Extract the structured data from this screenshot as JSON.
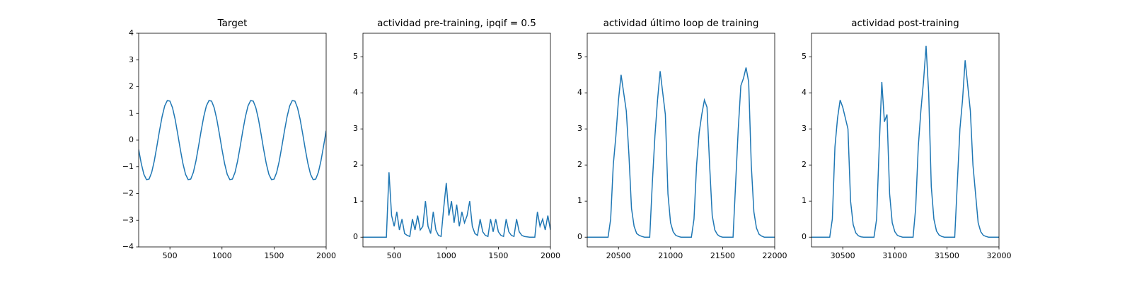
{
  "chart_data": [
    {
      "type": "line",
      "title": "Target",
      "color": "#1f77b4",
      "x": [
        200,
        225,
        250,
        275,
        300,
        325,
        350,
        375,
        400,
        425,
        450,
        475,
        500,
        525,
        550,
        575,
        600,
        625,
        650,
        675,
        700,
        725,
        750,
        775,
        800,
        825,
        850,
        875,
        900,
        925,
        950,
        975,
        1000,
        1025,
        1050,
        1075,
        1100,
        1125,
        1150,
        1175,
        1200,
        1225,
        1250,
        1275,
        1300,
        1325,
        1350,
        1375,
        1400,
        1425,
        1450,
        1475,
        1500,
        1525,
        1550,
        1575,
        1600,
        1625,
        1650,
        1675,
        1700,
        1725,
        1750,
        1775,
        1800,
        1825,
        1850,
        1875,
        1900,
        1925,
        1950,
        1975,
        2000
      ],
      "values": [
        -0.35,
        -0.88,
        -1.28,
        -1.48,
        -1.46,
        -1.21,
        -0.78,
        -0.23,
        0.35,
        0.88,
        1.28,
        1.48,
        1.46,
        1.21,
        0.78,
        0.23,
        -0.35,
        -0.88,
        -1.28,
        -1.48,
        -1.46,
        -1.21,
        -0.78,
        -0.23,
        0.35,
        0.88,
        1.28,
        1.48,
        1.46,
        1.21,
        0.78,
        0.23,
        -0.35,
        -0.88,
        -1.28,
        -1.48,
        -1.46,
        -1.21,
        -0.78,
        -0.23,
        0.35,
        0.88,
        1.28,
        1.48,
        1.46,
        1.21,
        0.78,
        0.23,
        -0.35,
        -0.88,
        -1.28,
        -1.48,
        -1.46,
        -1.21,
        -0.78,
        -0.23,
        0.35,
        0.88,
        1.28,
        1.48,
        1.46,
        1.21,
        0.78,
        0.23,
        -0.35,
        -0.88,
        -1.28,
        -1.48,
        -1.46,
        -1.21,
        -0.78,
        -0.23,
        0.35
      ],
      "xlim": [
        200,
        2000
      ],
      "xticks": [
        500,
        1000,
        1500,
        2000
      ],
      "ylim": [
        -4,
        4
      ],
      "yticks": [
        {
          "value": -4,
          "label": "−4"
        },
        {
          "value": -3,
          "label": "−3"
        },
        {
          "value": -2,
          "label": "−2"
        },
        {
          "value": -1,
          "label": "−1"
        },
        0,
        1,
        2,
        3,
        4
      ]
    },
    {
      "type": "line",
      "title": "actividad pre-training, ipqif = 0.5",
      "color": "#1f77b4",
      "x": [
        200,
        225,
        250,
        275,
        300,
        325,
        350,
        375,
        400,
        425,
        450,
        475,
        500,
        525,
        550,
        575,
        600,
        625,
        650,
        675,
        700,
        725,
        750,
        775,
        800,
        825,
        850,
        875,
        900,
        925,
        950,
        975,
        1000,
        1025,
        1050,
        1075,
        1100,
        1125,
        1150,
        1175,
        1200,
        1225,
        1250,
        1275,
        1300,
        1325,
        1350,
        1375,
        1400,
        1425,
        1450,
        1475,
        1500,
        1525,
        1550,
        1575,
        1600,
        1625,
        1650,
        1675,
        1700,
        1725,
        1750,
        1775,
        1800,
        1825,
        1850,
        1875,
        1900,
        1925,
        1950,
        1975,
        2000
      ],
      "values": [
        0,
        0,
        0,
        0,
        0,
        0,
        0,
        0,
        0,
        0,
        1.8,
        0.6,
        0.3,
        0.7,
        0.2,
        0.5,
        0.1,
        0.05,
        0.02,
        0.5,
        0.2,
        0.6,
        0.2,
        0.3,
        1.0,
        0.3,
        0.1,
        0.7,
        0.2,
        0.05,
        0.02,
        0.8,
        1.5,
        0.6,
        1.0,
        0.4,
        0.9,
        0.3,
        0.7,
        0.4,
        0.6,
        1.0,
        0.3,
        0.1,
        0.05,
        0.5,
        0.15,
        0.05,
        0.02,
        0.5,
        0.15,
        0.5,
        0.15,
        0.05,
        0.02,
        0.5,
        0.15,
        0.05,
        0.02,
        0.5,
        0.15,
        0.05,
        0.02,
        0.01,
        0,
        0,
        0,
        0.7,
        0.3,
        0.5,
        0.2,
        0.6,
        0.2
      ],
      "xlim": [
        200,
        2000
      ],
      "xticks": [
        500,
        1000,
        1500,
        2000
      ],
      "ylim": [
        -0.27,
        5.65
      ],
      "yticks": [
        0,
        1,
        2,
        3,
        4,
        5
      ]
    },
    {
      "type": "line",
      "title": "actividad último loop de training",
      "color": "#1f77b4",
      "x": [
        20200,
        20225,
        20250,
        20275,
        20300,
        20325,
        20350,
        20375,
        20400,
        20425,
        20450,
        20475,
        20500,
        20525,
        20550,
        20575,
        20600,
        20625,
        20650,
        20675,
        20700,
        20725,
        20750,
        20775,
        20800,
        20825,
        20850,
        20875,
        20900,
        20925,
        20950,
        20975,
        21000,
        21025,
        21050,
        21075,
        21100,
        21125,
        21150,
        21175,
        21200,
        21225,
        21250,
        21275,
        21300,
        21325,
        21350,
        21375,
        21400,
        21425,
        21450,
        21475,
        21500,
        21525,
        21550,
        21575,
        21600,
        21625,
        21650,
        21675,
        21700,
        21725,
        21750,
        21775,
        21800,
        21825,
        21850,
        21875,
        21900,
        21925,
        21950,
        21975,
        22000
      ],
      "values": [
        0,
        0,
        0,
        0,
        0,
        0,
        0,
        0,
        0,
        0.5,
        2.0,
        2.8,
        3.8,
        4.5,
        4.0,
        3.5,
        2.3,
        0.8,
        0.3,
        0.1,
        0.05,
        0.02,
        0,
        0,
        0,
        1.5,
        2.8,
        3.8,
        4.6,
        4.0,
        3.4,
        1.2,
        0.4,
        0.15,
        0.05,
        0.02,
        0,
        0,
        0,
        0,
        0,
        0.5,
        2.0,
        2.9,
        3.4,
        3.8,
        3.6,
        2.0,
        0.6,
        0.2,
        0.07,
        0.02,
        0,
        0,
        0,
        0,
        0,
        1.5,
        3.0,
        4.2,
        4.4,
        4.7,
        4.3,
        2.0,
        0.7,
        0.25,
        0.08,
        0.03,
        0,
        0,
        0,
        0,
        0
      ],
      "xlim": [
        20200,
        22000
      ],
      "xticks": [
        20500,
        21000,
        21500,
        22000
      ],
      "ylim": [
        -0.27,
        5.65
      ],
      "yticks": [
        0,
        1,
        2,
        3,
        4,
        5
      ]
    },
    {
      "type": "line",
      "title": "actividad post-training",
      "color": "#1f77b4",
      "x": [
        30200,
        30225,
        30250,
        30275,
        30300,
        30325,
        30350,
        30375,
        30400,
        30425,
        30450,
        30475,
        30500,
        30525,
        30550,
        30575,
        30600,
        30625,
        30650,
        30675,
        30700,
        30725,
        30750,
        30775,
        30800,
        30825,
        30850,
        30875,
        30900,
        30925,
        30950,
        30975,
        31000,
        31025,
        31050,
        31075,
        31100,
        31125,
        31150,
        31175,
        31200,
        31225,
        31250,
        31275,
        31300,
        31325,
        31350,
        31375,
        31400,
        31425,
        31450,
        31475,
        31500,
        31525,
        31550,
        31575,
        31600,
        31625,
        31650,
        31675,
        31700,
        31725,
        31750,
        31775,
        31800,
        31825,
        31850,
        31875,
        31900,
        31925,
        31950,
        31975,
        32000
      ],
      "values": [
        0,
        0,
        0,
        0,
        0,
        0,
        0,
        0,
        0.5,
        2.5,
        3.3,
        3.8,
        3.6,
        3.3,
        3.0,
        1.0,
        0.35,
        0.12,
        0.04,
        0.01,
        0,
        0,
        0,
        0,
        0,
        0.5,
        2.5,
        4.3,
        3.2,
        3.4,
        1.2,
        0.4,
        0.15,
        0.05,
        0.02,
        0,
        0,
        0,
        0,
        0,
        0.8,
        2.5,
        3.5,
        4.3,
        5.3,
        4.0,
        1.4,
        0.5,
        0.17,
        0.06,
        0.02,
        0,
        0,
        0,
        0,
        0,
        1.5,
        3.0,
        3.8,
        4.9,
        4.2,
        3.5,
        2.0,
        1.2,
        0.4,
        0.15,
        0.05,
        0.02,
        0,
        0,
        0,
        0,
        0
      ],
      "xlim": [
        30200,
        32000
      ],
      "xticks": [
        30500,
        31000,
        31500,
        32000
      ],
      "ylim": [
        -0.27,
        5.65
      ],
      "yticks": [
        0,
        1,
        2,
        3,
        4,
        5
      ]
    }
  ]
}
